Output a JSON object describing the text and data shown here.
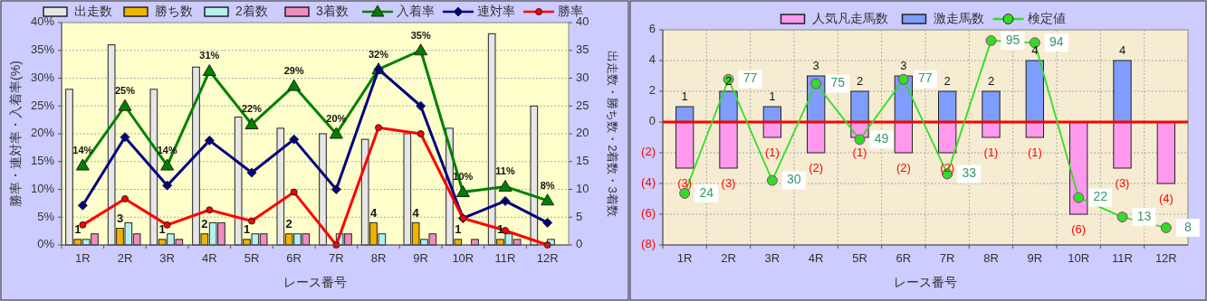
{
  "chart_data": [
    {
      "type": "bar",
      "categories": [
        "1R",
        "2R",
        "3R",
        "4R",
        "5R",
        "6R",
        "7R",
        "8R",
        "9R",
        "10R",
        "11R",
        "12R"
      ],
      "xlabel": "レース番号",
      "ylabel": "勝率・連対率・入着率(%)",
      "y2label": "出走数・勝ち数・2着数・3着数",
      "ylim": [
        0,
        40
      ],
      "yticks": [
        {
          "value": 0,
          "label": "0%"
        },
        {
          "value": 5,
          "label": "5%"
        },
        {
          "value": 10,
          "label": "10%"
        },
        {
          "value": 15,
          "label": "15%"
        },
        {
          "value": 20,
          "label": "20%"
        },
        {
          "value": 25,
          "label": "25%"
        },
        {
          "value": 30,
          "label": "30%"
        },
        {
          "value": 35,
          "label": "35%"
        },
        {
          "value": 40,
          "label": "40%"
        }
      ],
      "y2lim": [
        0,
        40
      ],
      "y2ticks": [
        0,
        5,
        10,
        15,
        20,
        25,
        30,
        35,
        40
      ],
      "grid": "y",
      "legend": "top",
      "series": [
        {
          "name": "出走数",
          "axis": "y2",
          "color": "#e6e6e6",
          "values": [
            28,
            36,
            28,
            32,
            23,
            21,
            20,
            19,
            20,
            21,
            38,
            25
          ]
        },
        {
          "name": "勝ち数",
          "axis": "y2",
          "color": "#f0b400",
          "values": [
            1,
            3,
            1,
            2,
            1,
            2,
            0,
            4,
            4,
            1,
            1,
            0
          ],
          "value_labels": [
            "1",
            "3",
            "1",
            "2",
            "1",
            "2",
            null,
            "4",
            "4",
            "1",
            "1",
            null
          ]
        },
        {
          "name": "2着数",
          "axis": "y2",
          "color": "#b4f0f0",
          "values": [
            1,
            4,
            2,
            4,
            2,
            2,
            2,
            2,
            1,
            0,
            2,
            1
          ]
        },
        {
          "name": "3着数",
          "axis": "y2",
          "color": "#f08cc0",
          "values": [
            2,
            2,
            1,
            4,
            2,
            2,
            2,
            0,
            2,
            1,
            1,
            0
          ]
        },
        {
          "name": "入着率",
          "type": "line",
          "axis": "y",
          "color": "#008000",
          "marker": "triangle",
          "values": [
            14.3,
            25,
            14.3,
            31.3,
            21.7,
            28.6,
            20,
            31.6,
            35,
            9.5,
            10.5,
            8
          ],
          "value_labels": [
            "14%",
            "25%",
            "14%",
            "31%",
            "22%",
            "29%",
            "20%",
            "32%",
            "35%",
            "10%",
            "11%",
            "8%"
          ]
        },
        {
          "name": "連対率",
          "type": "line",
          "axis": "y",
          "color": "#000080",
          "marker": "diamond",
          "values": [
            7.1,
            19.4,
            10.7,
            18.8,
            13,
            19,
            10,
            31.6,
            25,
            4.8,
            7.9,
            4
          ]
        },
        {
          "name": "勝率",
          "type": "line",
          "axis": "y",
          "color": "#ff0000",
          "marker": "circle",
          "values": [
            3.6,
            8.3,
            3.6,
            6.3,
            4.3,
            9.5,
            0,
            21.1,
            20,
            4.8,
            2.6,
            0
          ]
        }
      ]
    },
    {
      "type": "bar",
      "stacked": true,
      "categories": [
        "1R",
        "2R",
        "3R",
        "4R",
        "5R",
        "6R",
        "7R",
        "8R",
        "9R",
        "10R",
        "11R",
        "12R"
      ],
      "xlabel": "レース番号",
      "ylim": [
        -8,
        6
      ],
      "yticks": [
        {
          "value": -8,
          "label": "(8)"
        },
        {
          "value": -6,
          "label": "(6)"
        },
        {
          "value": -4,
          "label": "(4)"
        },
        {
          "value": -2,
          "label": "(2)"
        },
        0,
        2,
        4,
        6
      ],
      "y2lim": [
        0,
        100
      ],
      "grid": true,
      "legend": "top",
      "ref_lines": [
        {
          "axis": "y",
          "value": 0,
          "color": "#ff0000"
        }
      ],
      "series": [
        {
          "name": "人気凡走馬数",
          "axis": "y",
          "color": "#ff99ee",
          "values": [
            -3,
            -3,
            -1,
            -2,
            -1,
            -2,
            -2,
            -1,
            -1,
            -6,
            -3,
            -4
          ],
          "value_labels": [
            "(3)",
            "(3)",
            "(1)",
            "(2)",
            "(1)",
            "(2)",
            "(2)",
            "(1)",
            "(1)",
            "(6)",
            "(3)",
            "(4)"
          ]
        },
        {
          "name": "激走馬数",
          "axis": "y",
          "color": "#7f9cff",
          "values": [
            1,
            2,
            1,
            3,
            2,
            3,
            2,
            2,
            4,
            0,
            4,
            0
          ],
          "value_labels": [
            "1",
            "2",
            "1",
            "3",
            "2",
            "3",
            "2",
            "2",
            "4",
            null,
            "4",
            null
          ]
        },
        {
          "name": "検定値",
          "type": "line",
          "axis": "y2",
          "color": "#33dd22",
          "marker": "circle",
          "values": [
            24,
            77,
            30,
            75,
            49,
            77,
            33,
            95,
            94,
            22,
            13,
            8
          ],
          "value_labels": [
            "24",
            "77",
            "30",
            "75",
            "49",
            "77",
            "33",
            "95",
            "94",
            "22",
            "13",
            "8"
          ]
        }
      ]
    }
  ]
}
